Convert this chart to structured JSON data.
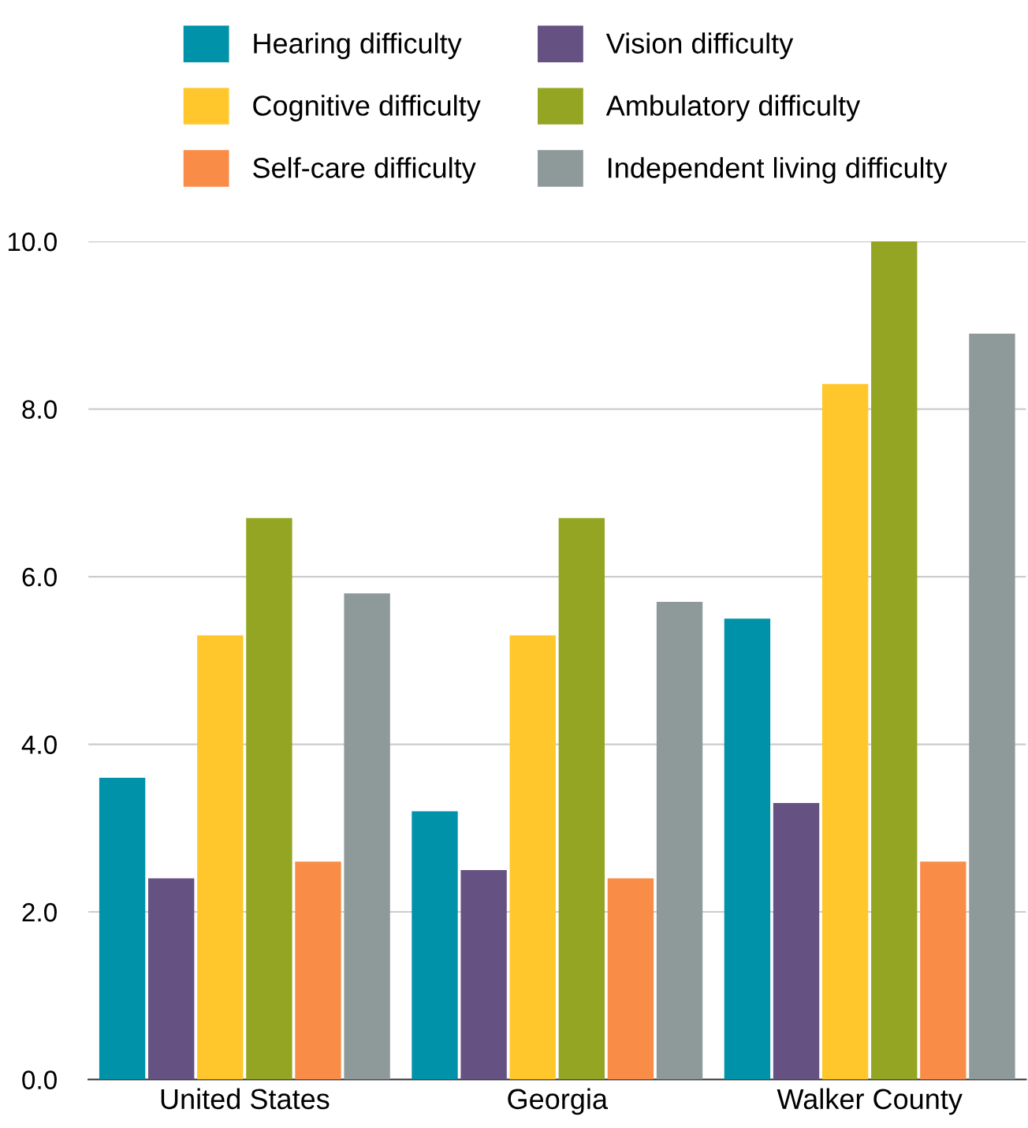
{
  "chart_data": {
    "type": "bar",
    "categories": [
      "United States",
      "Georgia",
      "Walker County"
    ],
    "series": [
      {
        "name": "Hearing difficulty",
        "color": "#0092a8",
        "values": [
          3.6,
          3.2,
          5.5
        ]
      },
      {
        "name": "Vision difficulty",
        "color": "#665282",
        "values": [
          2.4,
          2.5,
          3.3
        ]
      },
      {
        "name": "Cognitive difficulty",
        "color": "#ffc72c",
        "values": [
          5.3,
          5.3,
          8.3
        ]
      },
      {
        "name": "Ambulatory difficulty",
        "color": "#94a523",
        "values": [
          6.7,
          6.7,
          10.0
        ]
      },
      {
        "name": "Self-care difficulty",
        "color": "#f98d48",
        "values": [
          2.6,
          2.4,
          2.6
        ]
      },
      {
        "name": "Independent living difficulty",
        "color": "#8e9a9a",
        "values": [
          5.8,
          5.7,
          8.9
        ]
      }
    ],
    "ylim": [
      0,
      10
    ],
    "yticks": [
      {
        "value": 0,
        "label": "0.0"
      },
      {
        "value": 2,
        "label": "2.0"
      },
      {
        "value": 4,
        "label": "4.0"
      },
      {
        "value": 6,
        "label": "6.0"
      },
      {
        "value": 8,
        "label": "8.0"
      },
      {
        "value": 10,
        "label": "10.0"
      }
    ],
    "grid": "y",
    "legend": "top"
  }
}
